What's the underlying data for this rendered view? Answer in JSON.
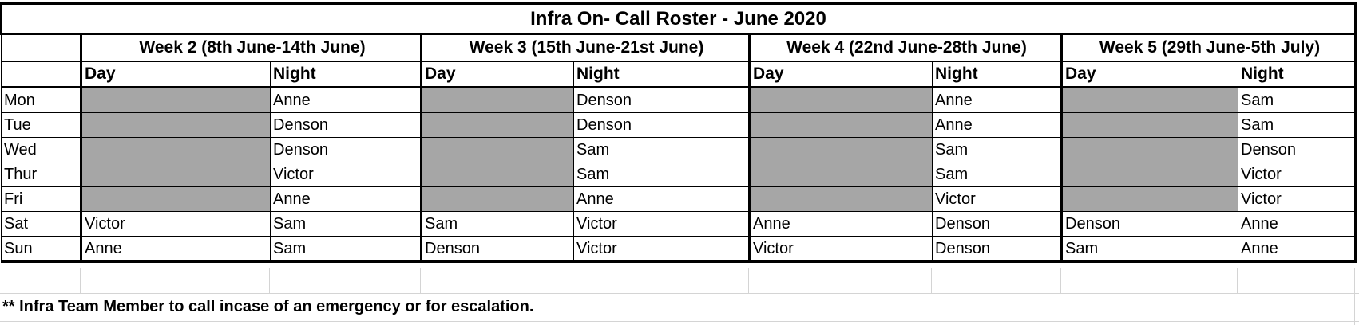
{
  "title": "Infra On- Call Roster - June 2020",
  "weeks": [
    "Week 2 (8th June-14th June)",
    "Week 3 (15th June-21st June)",
    "Week 4 (22nd June-28th June)",
    "Week 5 (29th June-5th July)"
  ],
  "shift_labels": {
    "day": "Day",
    "night": "Night"
  },
  "rows": [
    {
      "day": "Mon",
      "cells": [
        "",
        "Anne",
        "",
        "Denson",
        "",
        "Anne",
        "",
        "Sam"
      ]
    },
    {
      "day": "Tue",
      "cells": [
        "",
        "Denson",
        "",
        "Denson",
        "",
        "Anne",
        "",
        "Sam"
      ]
    },
    {
      "day": "Wed",
      "cells": [
        "",
        "Denson",
        "",
        "Sam",
        "",
        "Sam",
        "",
        "Denson"
      ]
    },
    {
      "day": "Thur",
      "cells": [
        "",
        "Victor",
        "",
        "Sam",
        "",
        "Sam",
        "",
        "Victor"
      ]
    },
    {
      "day": "Fri",
      "cells": [
        "",
        "Anne",
        "",
        "Anne",
        "",
        "Victor",
        "",
        "Victor"
      ]
    },
    {
      "day": "Sat",
      "cells": [
        "Victor",
        "Sam",
        "Sam",
        "Victor",
        "Anne",
        "Denson",
        "Denson",
        "Anne"
      ]
    },
    {
      "day": "Sun",
      "cells": [
        "Anne",
        "Sam",
        "Denson",
        "Victor",
        "Victor",
        "Denson",
        "Sam",
        "Anne"
      ]
    }
  ],
  "shaded_weekday_day_cells": true,
  "colors": {
    "shaded": "#a6a6a6",
    "grid": "#d4d4d4",
    "border": "#000000"
  },
  "note": "** Infra Team Member to call incase of an emergency or for escalation."
}
